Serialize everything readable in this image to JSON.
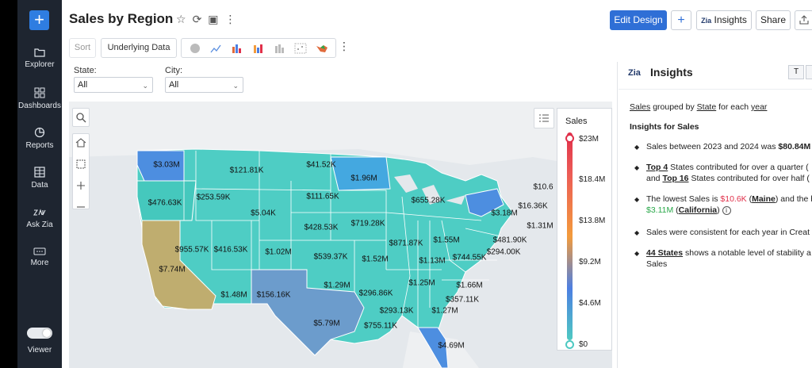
{
  "sidebar": {
    "items": [
      {
        "label": "Explorer",
        "icon": "folder-icon"
      },
      {
        "label": "Dashboards",
        "icon": "dashboard-icon"
      },
      {
        "label": "Reports",
        "icon": "pie-chart-icon"
      },
      {
        "label": "Data",
        "icon": "table-icon"
      },
      {
        "label": "Ask Zia",
        "icon": "zia-icon"
      },
      {
        "label": "More",
        "icon": "more-icon"
      }
    ],
    "viewer_label": "Viewer"
  },
  "header": {
    "title": "Sales by Region",
    "edit_design": "Edit Design",
    "insights": "Insights",
    "share": "Share"
  },
  "toolbar": {
    "sort": "Sort",
    "underlying_data": "Underlying Data"
  },
  "filters": {
    "state_label": "State:",
    "state_value": "All",
    "city_label": "City:",
    "city_value": "All"
  },
  "colors": {
    "accent": "#2f6fd6",
    "sidebar_bg": "#1e2530",
    "map_low": "#4ec9c2",
    "map_mid": "#4d7fe2",
    "map_high": "#e0304a"
  },
  "map": {
    "legend_title": "Sales",
    "legend_ticks": [
      "$23M",
      "$18.4M",
      "$13.8M",
      "$9.2M",
      "$4.6M",
      "$0"
    ],
    "labels": [
      {
        "value": "$3.03M"
      },
      {
        "value": "$121.81K"
      },
      {
        "value": "$41.52K"
      },
      {
        "value": "$1.96M"
      },
      {
        "value": "$10.6"
      },
      {
        "value": "$476.63K"
      },
      {
        "value": "$253.59K"
      },
      {
        "value": "$111.65K"
      },
      {
        "value": "$655.28K"
      },
      {
        "value": "$16.36K"
      },
      {
        "value": "$5.04K"
      },
      {
        "value": "$3.18M"
      },
      {
        "value": "$1.31M"
      },
      {
        "value": "$428.53K"
      },
      {
        "value": "$719.28K"
      },
      {
        "value": "$7.74M"
      },
      {
        "value": "$955.57K"
      },
      {
        "value": "$416.53K"
      },
      {
        "value": "$1.02M"
      },
      {
        "value": "$871.87K"
      },
      {
        "value": "$1.55M"
      },
      {
        "value": "$481.90K"
      },
      {
        "value": "$539.37K"
      },
      {
        "value": "$1.52M"
      },
      {
        "value": "$1.13M"
      },
      {
        "value": "$744.55K"
      },
      {
        "value": "$294.00K"
      },
      {
        "value": "$1.29M"
      },
      {
        "value": "$1.25M"
      },
      {
        "value": "$1.66M"
      },
      {
        "value": "$1.48M"
      },
      {
        "value": "$156.16K"
      },
      {
        "value": "$296.86K"
      },
      {
        "value": "$357.11K"
      },
      {
        "value": "$293.13K"
      },
      {
        "value": "$1.27M"
      },
      {
        "value": "$5.79M"
      },
      {
        "value": "$755.11K"
      },
      {
        "value": "$4.69M"
      }
    ]
  },
  "insights": {
    "title": "Insights",
    "t_button": "T",
    "subtitle_a": "Sales",
    "subtitle_b": "grouped by",
    "subtitle_c": "State",
    "subtitle_d": "for each",
    "subtitle_e": "year",
    "section": "Insights for Sales",
    "b1_text": "Sales between 2023 and 2024 was",
    "b1_value": "$80.84M",
    "b2_a": "Top 4",
    "b2_b": "States contributed for over a quarter (",
    "b2_c": "and",
    "b2_d": "Top 16",
    "b2_e": "States contributed for over half (",
    "b3_a": "The lowest Sales is",
    "b3_b": "$10.6K",
    "b3_c": "Maine",
    "b3_d": "and the h",
    "b3_e": "$3.11M",
    "b3_f": "California",
    "b4": "Sales were consistent for each year in Creat",
    "b5_a": "44 States",
    "b5_b": "shows a notable level of stability a",
    "b5_c": "Sales"
  }
}
